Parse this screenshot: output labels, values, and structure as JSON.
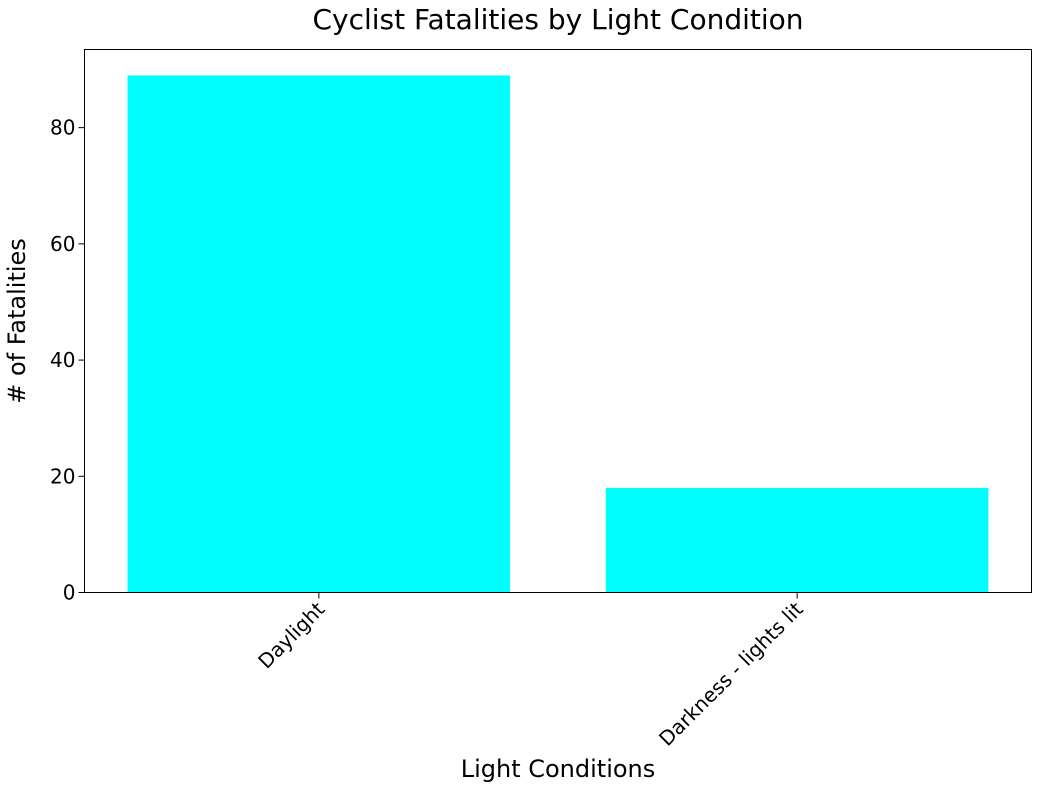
{
  "chart_data": {
    "type": "bar",
    "title": "Cyclist Fatalities by Light Condition",
    "xlabel": "Light Conditions",
    "ylabel": "# of Fatalities",
    "categories": [
      "Daylight",
      "Darkness - lights lit"
    ],
    "values": [
      89,
      18
    ],
    "ylim": [
      0,
      93.45
    ],
    "yticks": [
      0,
      20,
      40,
      60,
      80
    ],
    "bar_color": "#00ffff",
    "grid": false,
    "legend": false,
    "xtick_rotation_deg": 45
  }
}
